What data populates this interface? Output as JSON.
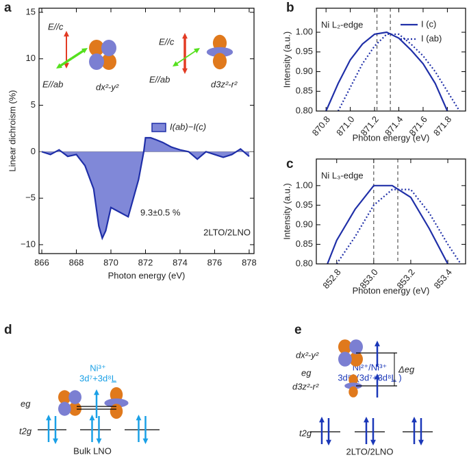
{
  "chart_data": [
    {
      "panel": "a",
      "type": "area",
      "xlabel": "Photon energy (eV)",
      "ylabel": "Linear dichroism (%)",
      "x": [
        866,
        866.5,
        867,
        867.5,
        868,
        868.5,
        869,
        869.3,
        869.5,
        869.7,
        870,
        870.5,
        871,
        871.3,
        871.6,
        871.9,
        872,
        872.3,
        872.6,
        873,
        873.5,
        874,
        874.5,
        875,
        875.5,
        876,
        876.5,
        877,
        877.5,
        878
      ],
      "series": [
        {
          "name": "I(ab)−I(c)",
          "color": "#1f2fa8",
          "fill": "#8088d8",
          "values": [
            0,
            -0.3,
            0.2,
            -0.5,
            -0.3,
            -1.5,
            -4,
            -8,
            -9.3,
            -8.5,
            -6,
            -6.5,
            -7,
            -5,
            -3,
            0,
            1.5,
            1.5,
            1.3,
            1,
            0.5,
            0.2,
            0,
            -0.8,
            0,
            -0.3,
            -0.6,
            -0.3,
            0.3,
            -0.5
          ]
        }
      ],
      "xlim": [
        865.84,
        878.28
      ],
      "ylim": [
        -10.96,
        15.44
      ],
      "xticks": [
        866,
        868,
        870,
        872,
        874,
        876,
        878
      ],
      "yticks": [
        {
          "value": -10,
          "label": "−10"
        },
        {
          "value": -5,
          "label": "−5"
        },
        0,
        5,
        10,
        15
      ],
      "legend": "center",
      "annotations": [
        "9.3±0.5 %",
        "2LTO/2LNO",
        "E//c",
        "E//ab",
        "dx²-y²",
        "E//c",
        "E//ab",
        "d3z²-r²"
      ]
    },
    {
      "panel": "b",
      "type": "line",
      "xlabel": "Photon energy (eV)",
      "ylabel": "Intensity (a.u.)",
      "title": "Ni L₂-edge",
      "x": [
        870.8,
        870.9,
        871.0,
        871.1,
        871.2,
        871.3,
        871.4,
        871.5,
        871.6,
        871.7,
        871.8,
        871.9
      ],
      "series": [
        {
          "name": "I (c)",
          "color": "#1f2fa8",
          "dash": false,
          "values": [
            0.8,
            0.87,
            0.93,
            0.97,
            0.995,
            1.0,
            0.985,
            0.955,
            0.92,
            0.87,
            0.8,
            null
          ]
        },
        {
          "name": "I (ab)",
          "color": "#1f2fa8",
          "dash": true,
          "values": [
            null,
            0.8,
            0.86,
            0.92,
            0.965,
            0.995,
            0.995,
            0.97,
            0.94,
            0.9,
            0.85,
            0.8
          ]
        }
      ],
      "xlim": [
        870.72,
        871.95
      ],
      "ylim": [
        0.8,
        1.061
      ],
      "xticks": [
        870.8,
        {
          "value": 871,
          "label": "871.0"
        },
        871.2,
        871.4,
        871.6,
        871.8
      ],
      "yticks": [
        {
          "value": 0.8,
          "label": "0.80"
        },
        0.85,
        {
          "value": 0.9,
          "label": "0.90"
        },
        0.95,
        {
          "value": 1,
          "label": "1.00"
        }
      ],
      "vlines": [
        871.22,
        871.33
      ],
      "legend": "upper right"
    },
    {
      "panel": "c",
      "type": "line",
      "xlabel": "Photon energy (eV)",
      "ylabel": "Intensity (a.u.)",
      "title": "Ni L₃-edge",
      "x": [
        852.75,
        852.8,
        852.9,
        853.0,
        853.1,
        853.2,
        853.3,
        853.4,
        853.47
      ],
      "series": [
        {
          "name": "I (c)",
          "color": "#1f2fa8",
          "dash": false,
          "values": [
            0.8,
            0.86,
            0.94,
            1.0,
            1.0,
            0.97,
            0.89,
            0.8,
            null
          ]
        },
        {
          "name": "I (ab)",
          "color": "#1f2fa8",
          "dash": true,
          "values": [
            null,
            0.8,
            0.87,
            0.95,
            0.99,
            0.99,
            0.93,
            0.85,
            0.8
          ]
        }
      ],
      "xlim": [
        852.69,
        853.496
      ],
      "ylim": [
        0.8,
        1.068
      ],
      "xticks": [
        852.8,
        {
          "value": 853,
          "label": "853.0"
        },
        853.2,
        853.4
      ],
      "yticks": [
        {
          "value": 0.8,
          "label": "0.80"
        },
        0.85,
        {
          "value": 0.9,
          "label": "0.90"
        },
        0.95,
        {
          "value": 1,
          "label": "1.00"
        }
      ],
      "vlines": [
        853.0,
        853.13
      ]
    }
  ],
  "diagrams": [
    {
      "panel": "d",
      "ion": "Ni³⁺",
      "config": "3d⁷+3d⁸L̲",
      "eg": "eg",
      "t2g": "t2g",
      "caption": "Bulk LNO"
    },
    {
      "panel": "e",
      "ion": "Ni²⁺/Ni³⁺",
      "config": "3d⁸/ (3d⁷+3d⁸L̲ )",
      "orbital_top": "dx²-y²",
      "orbital_bottom": "d3z²-r²",
      "eg": "eg",
      "delta": "Δeg",
      "t2g": "t2g",
      "caption": "2LTO/2LNO"
    }
  ]
}
